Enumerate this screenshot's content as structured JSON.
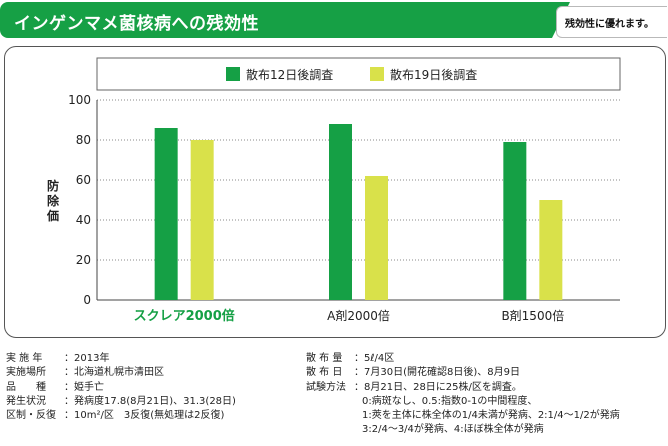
{
  "header": {
    "title": "インゲンマメ菌核病への残効性",
    "badge": "残効性に優れます。"
  },
  "chart_data": {
    "type": "bar",
    "categories": [
      "スクレア2000倍",
      "A剤2000倍",
      "B剤1500倍"
    ],
    "series": [
      {
        "name": "散布12日後調査",
        "values": [
          86,
          88,
          79
        ],
        "color": "#15a045"
      },
      {
        "name": "散布19日後調査",
        "values": [
          80,
          62,
          50
        ],
        "color": "#d9e14a"
      }
    ],
    "ylabel": "防除価",
    "xlabel": "",
    "ylim": [
      0,
      100
    ],
    "yticks": [
      0,
      20,
      40,
      60,
      80,
      100
    ],
    "grid": "horizontal-dotted",
    "legend_position": "top",
    "highlight_category_color": "#15a045"
  },
  "notes": {
    "left": [
      {
        "label": "実 施 年",
        "value": "2013年"
      },
      {
        "label": "実施場所",
        "value": "北海道札幌市清田区"
      },
      {
        "label": "品　　種",
        "value": "姫手亡"
      },
      {
        "label": "発生状況",
        "value": "発病度17.8(8月21日)、31.3(28日)"
      },
      {
        "label": "区制・反復",
        "value": "10m²/区　3反復(無処理は2反復)"
      }
    ],
    "right": [
      {
        "label": "散 布 量",
        "value": "5ℓ/4区"
      },
      {
        "label": "散 布 日",
        "value": "7月30日(開花確認8日後)、8月9日"
      },
      {
        "label": "試験方法",
        "value": "8月21日、28日に25株/区を調査。"
      }
    ],
    "right_continuation": [
      "0:病斑なし、0.5:指数0-1の中間程度、",
      "1:莢を主体に株全体の1/4未満が発病、2:1/4～1/2が発病",
      "3:2/4～3/4が発病、4:ほぼ株全体が発病"
    ]
  }
}
